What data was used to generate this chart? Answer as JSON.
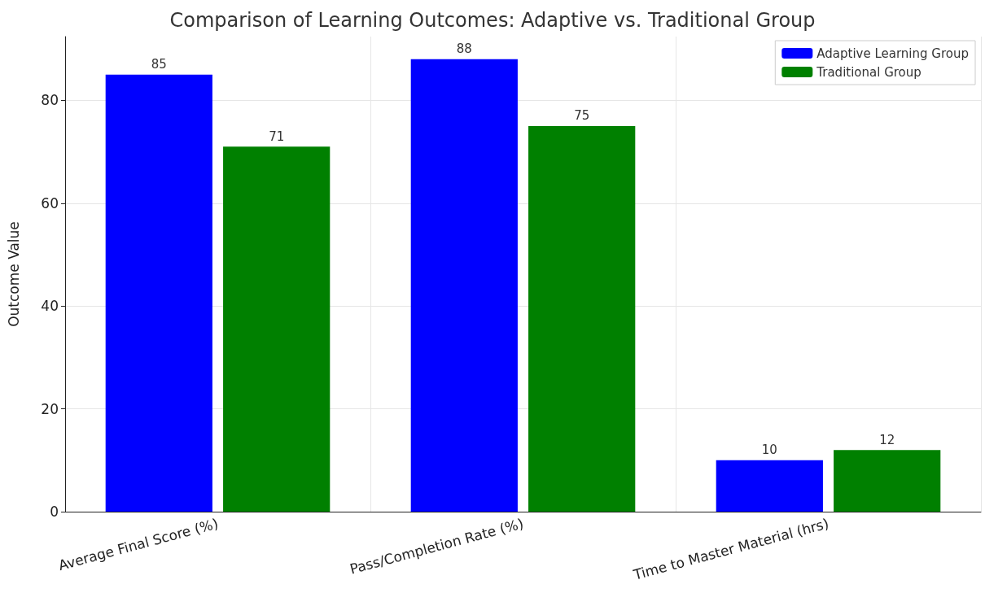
{
  "chart_data": {
    "type": "bar",
    "title": "Comparison of Learning Outcomes: Adaptive vs. Traditional Group",
    "ylabel": "Outcome Value",
    "categories": [
      "Average Final Score (%)",
      "Pass/Completion Rate (%)",
      "Time to Master Material (hrs)"
    ],
    "series": [
      {
        "name": "Adaptive Learning Group",
        "color": "#0000ff",
        "values": [
          85,
          88,
          10
        ]
      },
      {
        "name": "Traditional Group",
        "color": "#008000",
        "values": [
          71,
          75,
          12
        ]
      }
    ],
    "ylim": [
      0,
      92.4
    ],
    "yticks": [
      0,
      20,
      40,
      60,
      80
    ],
    "grid": true,
    "legend": "top right",
    "data_labels": true
  }
}
